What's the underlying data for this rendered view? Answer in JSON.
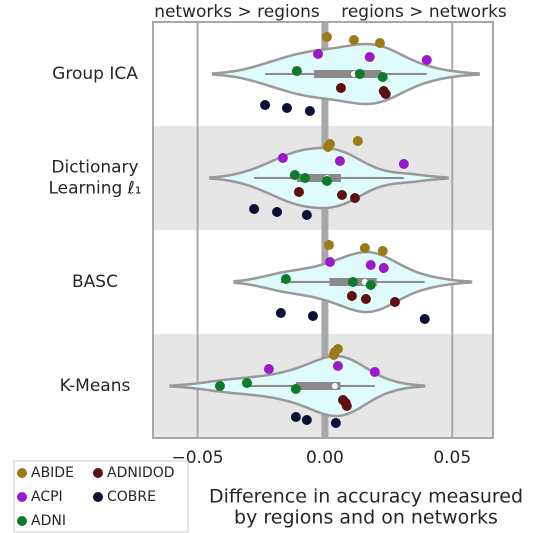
{
  "chart_data": {
    "type": "violin",
    "annotations": [
      "networks > regions",
      "regions > networks"
    ],
    "xlabel": "Difference in accuracy measured\nby regions and on networks",
    "categories": [
      "Group ICA",
      "Dictionary\nLearning ℓ₁",
      "BASC",
      "K-Means"
    ],
    "xlim": [
      -0.0675,
      0.066
    ],
    "xticks": [
      {
        "value": -0.05,
        "label": "−0.05"
      },
      {
        "value": 0,
        "label": "0.00"
      },
      {
        "value": 0.05,
        "label": "0.05"
      }
    ],
    "grid": true,
    "violin_color": "#e0fbfb",
    "series": [
      {
        "name": "ABIDE",
        "color": "#9c7a18",
        "values": [
          [
            0.0008,
            0.0114,
            0.0216
          ],
          [
            0.0129,
            0.002,
            0.0012
          ],
          [
            0.0016,
            0.0157,
            0.0227
          ],
          [
            0.0051,
            0.0039,
            0.0035
          ]
        ]
      },
      {
        "name": "ACPI",
        "color": "#9b19c9",
        "values": [
          [
            -0.0027,
            0.0176,
            0.04
          ],
          [
            -0.0165,
            0.0059,
            0.031
          ],
          [
            0.002,
            0.018,
            0.0231
          ],
          [
            0.0051,
            -0.022,
            0.0196
          ]
        ]
      },
      {
        "name": "ADNI",
        "color": "#0f7a2a",
        "values": [
          [
            -0.011,
            0.0137,
            0.0227
          ],
          [
            -0.0118,
            -0.0078,
            0.0008
          ],
          [
            -0.0153,
            0.011,
            0.018
          ],
          [
            -0.0306,
            -0.0412,
            -0.0114
          ]
        ]
      },
      {
        "name": "ADNIDOD",
        "color": "#5c1010",
        "values": [
          [
            0.0063,
            0.0231,
            0.0239
          ],
          [
            -0.0102,
            0.0067,
            0.0118
          ],
          [
            0.0106,
            0.0161,
            0.0275
          ],
          [
            0.0071,
            0.0082,
            0.0086
          ]
        ]
      },
      {
        "name": "COBRE",
        "color": "#0a0f35",
        "values": [
          [
            -0.0235,
            -0.0149,
            -0.0059
          ],
          [
            -0.0278,
            -0.0188,
            -0.0071
          ],
          [
            -0.0173,
            -0.0047,
            0.0392
          ],
          [
            -0.0114,
            -0.0071,
            0.0043
          ]
        ]
      }
    ]
  }
}
